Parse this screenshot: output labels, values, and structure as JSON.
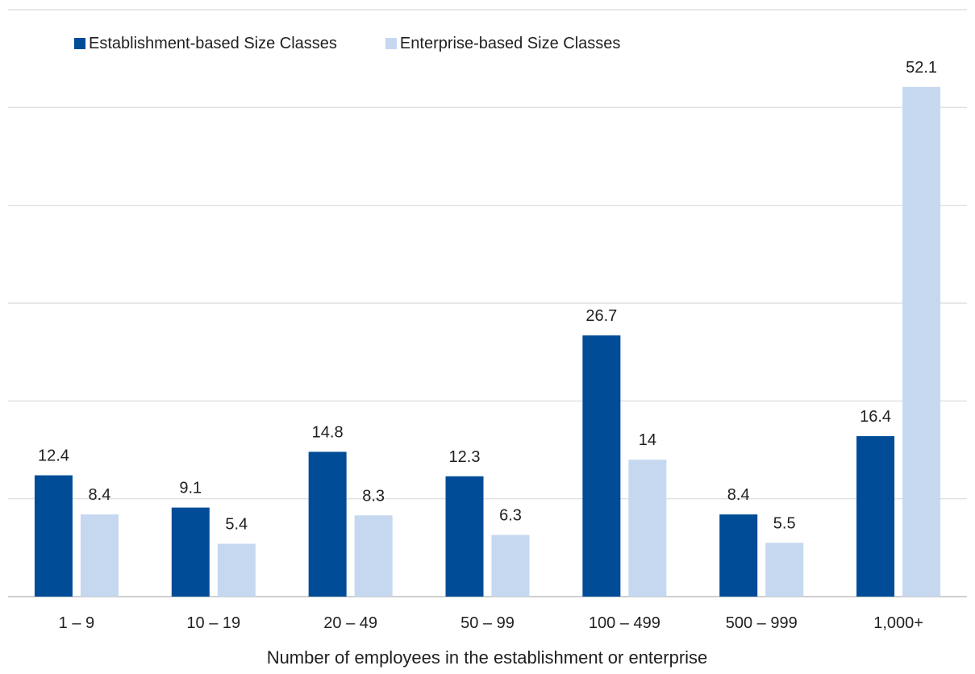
{
  "chart_data": {
    "type": "bar",
    "title": "",
    "xlabel": "Number of employees in the establishment or enterprise",
    "ylabel": "",
    "categories": [
      "1 – 9",
      "10 – 19",
      "20 – 49",
      "50 – 99",
      "100 – 499",
      "500 – 999",
      "1,000+"
    ],
    "series": [
      {
        "name": "Establishment-based Size Classes",
        "color": "#004c97",
        "values": [
          12.4,
          9.1,
          14.8,
          12.3,
          26.7,
          8.4,
          16.4
        ],
        "labels": [
          "12.4",
          "9.1",
          "14.8",
          "12.3",
          "26.7",
          "8.4",
          "16.4"
        ]
      },
      {
        "name": "Enterprise-based Size Classes",
        "color": "#c5d8ef",
        "values": [
          8.4,
          5.4,
          8.3,
          6.3,
          14,
          5.5,
          52.1
        ],
        "labels": [
          "8.4",
          "5.4",
          "8.3",
          "6.3",
          "14",
          "5.5",
          "52.1"
        ]
      }
    ],
    "ylim": [
      0,
      60
    ],
    "grid": true,
    "gridlines": [
      0,
      10,
      20,
      30,
      40,
      50,
      60
    ],
    "y_ticks_shown": false,
    "legend": "top-left"
  }
}
